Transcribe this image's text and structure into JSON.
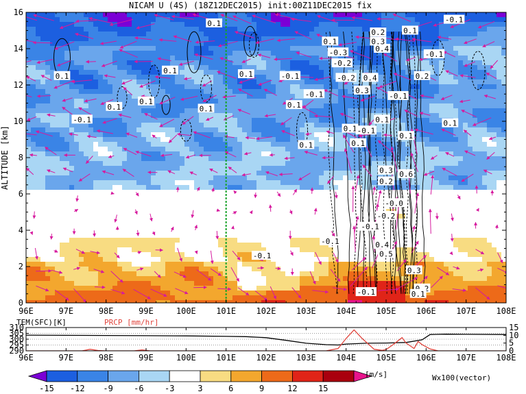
{
  "colors": {
    "bg": "#ffffff",
    "vector": "#d61a9e",
    "green_line": "#17a32b",
    "precip": "#e0443c",
    "contour": "#000000",
    "shade": [
      "#7b00d6",
      "#1c5fe0",
      "#3a84e6",
      "#6aa6ec",
      "#a9d6f4",
      "#ffffff",
      "#f8dc82",
      "#f3a72e",
      "#ed6a19",
      "#e02418",
      "#a9000e",
      "#e8148c"
    ]
  },
  "chart_data": [
    {
      "type": "heatmap",
      "title": "NICAM U (4S) (18Z12DEC2015) init:00Z11DEC2015 fix",
      "xlabel": "",
      "ylabel": "ALTITUDE [km]",
      "xlim": [
        96,
        108
      ],
      "ylim": [
        0,
        16
      ],
      "x_ticks": [
        "96E",
        "97E",
        "98E",
        "99E",
        "100E",
        "101E",
        "102E",
        "103E",
        "104E",
        "105E",
        "106E",
        "107E",
        "108E"
      ],
      "y_ticks": [
        "0",
        "2",
        "4",
        "6",
        "8",
        "10",
        "12",
        "14",
        "16"
      ],
      "reference_line_x": 101,
      "contour_labels": [
        {
          "lon": 100.7,
          "alt": 15.4,
          "text": "0.1"
        },
        {
          "lon": 96.9,
          "alt": 12.5,
          "text": "0.1"
        },
        {
          "lon": 99.6,
          "alt": 12.8,
          "text": "0.1"
        },
        {
          "lon": 100.5,
          "alt": 10.7,
          "text": "0.1"
        },
        {
          "lon": 98.2,
          "alt": 10.8,
          "text": "0.1"
        },
        {
          "lon": 99.0,
          "alt": 11.1,
          "text": "0.1"
        },
        {
          "lon": 101.5,
          "alt": 12.6,
          "text": "0.1"
        },
        {
          "lon": 102.6,
          "alt": 12.5,
          "text": "-0.1"
        },
        {
          "lon": 103.2,
          "alt": 11.5,
          "text": "-0.1"
        },
        {
          "lon": 102.7,
          "alt": 10.9,
          "text": "0.1"
        },
        {
          "lon": 103.0,
          "alt": 8.7,
          "text": "0.1"
        },
        {
          "lon": 97.4,
          "alt": 10.1,
          "text": "-0.1"
        },
        {
          "lon": 103.6,
          "alt": 14.4,
          "text": "0.1"
        },
        {
          "lon": 103.8,
          "alt": 13.8,
          "text": "-0.3"
        },
        {
          "lon": 103.9,
          "alt": 13.2,
          "text": "-0.2"
        },
        {
          "lon": 104.0,
          "alt": 12.4,
          "text": "-0.2"
        },
        {
          "lon": 104.6,
          "alt": 12.4,
          "text": "0.4"
        },
        {
          "lon": 104.4,
          "alt": 11.7,
          "text": "0.3"
        },
        {
          "lon": 104.9,
          "alt": 14.0,
          "text": "0.4"
        },
        {
          "lon": 104.8,
          "alt": 14.9,
          "text": "0.2"
        },
        {
          "lon": 104.8,
          "alt": 14.4,
          "text": "0.3"
        },
        {
          "lon": 105.6,
          "alt": 15.0,
          "text": "0.1"
        },
        {
          "lon": 106.7,
          "alt": 15.6,
          "text": "-0.1"
        },
        {
          "lon": 106.2,
          "alt": 13.7,
          "text": "-0.1"
        },
        {
          "lon": 105.9,
          "alt": 12.5,
          "text": "0.2"
        },
        {
          "lon": 105.3,
          "alt": 11.4,
          "text": "-0.1"
        },
        {
          "lon": 106.6,
          "alt": 9.9,
          "text": "0.1"
        },
        {
          "lon": 104.3,
          "alt": 8.8,
          "text": "0.1"
        },
        {
          "lon": 104.1,
          "alt": 9.6,
          "text": "0.1"
        },
        {
          "lon": 104.5,
          "alt": 9.5,
          "text": "-0.1"
        },
        {
          "lon": 104.9,
          "alt": 10.1,
          "text": "0.1"
        },
        {
          "lon": 105.5,
          "alt": 9.2,
          "text": "0.1"
        },
        {
          "lon": 105.0,
          "alt": 7.3,
          "text": "0.3"
        },
        {
          "lon": 105.0,
          "alt": 6.7,
          "text": "0.2"
        },
        {
          "lon": 105.5,
          "alt": 7.1,
          "text": "0.6"
        },
        {
          "lon": 105.2,
          "alt": 5.5,
          "text": "-0.0"
        },
        {
          "lon": 105.0,
          "alt": 4.8,
          "text": "-0.2"
        },
        {
          "lon": 104.6,
          "alt": 4.2,
          "text": "-0.1"
        },
        {
          "lon": 103.6,
          "alt": 3.4,
          "text": "-0.1"
        },
        {
          "lon": 104.9,
          "alt": 3.2,
          "text": "0.4"
        },
        {
          "lon": 105.0,
          "alt": 2.7,
          "text": "0.5"
        },
        {
          "lon": 101.9,
          "alt": 2.6,
          "text": "-0.1"
        },
        {
          "lon": 105.7,
          "alt": 1.8,
          "text": "0.3"
        },
        {
          "lon": 105.9,
          "alt": 0.8,
          "text": "0.2"
        },
        {
          "lon": 105.8,
          "alt": 0.5,
          "text": "0.1"
        },
        {
          "lon": 104.5,
          "alt": 0.6,
          "text": "-0.1"
        }
      ],
      "colorbar": {
        "ticks": [
          "-15",
          "-12",
          "-9",
          "-6",
          "-3",
          "3",
          "6",
          "9",
          "12",
          "15"
        ],
        "unit": "[m/s]",
        "vector_label": "Wx100(vector)"
      }
    },
    {
      "type": "line",
      "title": "",
      "xlim": [
        96,
        108
      ],
      "y_left_ticks": [
        "290",
        "295",
        "300",
        "305",
        "310"
      ],
      "y_right_ticks": [
        "0",
        "5",
        "10",
        "15"
      ],
      "series": [
        {
          "name": "TEM(SFC)[K]",
          "x": [
            96,
            97,
            98,
            99,
            100,
            101,
            101.5,
            102,
            102.5,
            103,
            103.5,
            103.8,
            104.0,
            104.5,
            105.0,
            105.5,
            105.9,
            106.1,
            106.5,
            107,
            108
          ],
          "values": [
            303.5,
            303.3,
            303.2,
            303.0,
            302.8,
            302.4,
            302.2,
            301.3,
            299.0,
            296.5,
            295.3,
            295.0,
            295.8,
            296.5,
            296.7,
            297.2,
            299.5,
            304.0,
            304.3,
            304.2,
            304.0
          ]
        },
        {
          "name": "PRCP [mm/hr]",
          "x": [
            96,
            97.4,
            97.6,
            97.8,
            98.0,
            98.7,
            98.9,
            99.1,
            103.5,
            103.8,
            104.0,
            104.2,
            104.4,
            104.7,
            104.9,
            105.0,
            105.2,
            105.4,
            105.5,
            105.7,
            105.8,
            105.9,
            106.1,
            106.3,
            108
          ],
          "values": [
            0,
            0,
            1.0,
            0.2,
            0,
            0,
            0.6,
            0,
            0,
            1.5,
            8.0,
            13.5,
            8.0,
            1.0,
            0.3,
            0.8,
            4.5,
            8.5,
            5.0,
            1.5,
            6.0,
            4.0,
            1.2,
            0,
            0
          ]
        }
      ]
    }
  ]
}
